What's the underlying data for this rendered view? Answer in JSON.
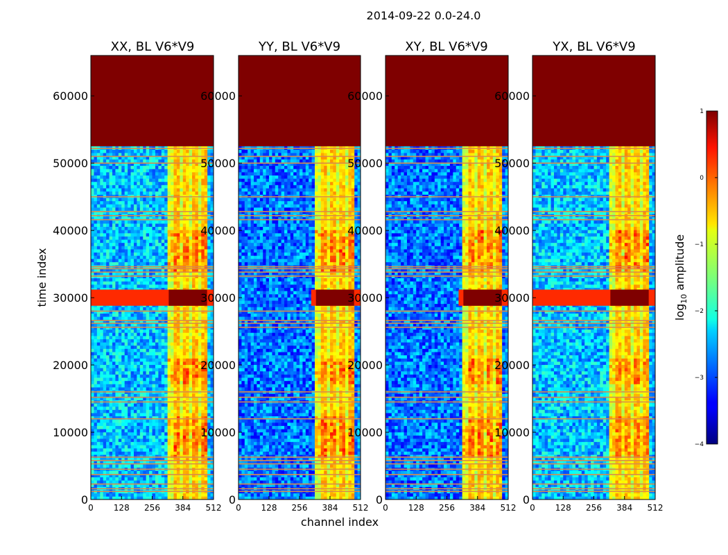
{
  "figure": {
    "suptitle": "2014-09-22 0.0-24.0"
  },
  "chart_data": [
    {
      "type": "heatmap",
      "title": "XX, BL V6*V9",
      "xlabel": "channel index",
      "ylabel": "time index",
      "xlim": [
        0,
        512
      ],
      "ylim": [
        0,
        66000
      ],
      "xticks": [
        0,
        128,
        256,
        384,
        512
      ],
      "yticks": [
        0,
        10000,
        20000,
        30000,
        40000,
        50000,
        60000
      ],
      "flag_region": [
        52500,
        66000
      ],
      "rfi_band_channels": [
        325,
        485
      ],
      "bright_time_bands": [
        [
          28800,
          31200
        ]
      ],
      "profile": "xx"
    },
    {
      "type": "heatmap",
      "title": "YY, BL V6*V9",
      "xlabel": "channel index",
      "ylabel": "",
      "xlim": [
        0,
        512
      ],
      "ylim": [
        0,
        66000
      ],
      "xticks": [
        0,
        128,
        256,
        384,
        512
      ],
      "yticks": [
        0,
        10000,
        20000,
        30000,
        40000,
        50000,
        60000
      ],
      "flag_region": [
        52500,
        66000
      ],
      "rfi_band_channels": [
        325,
        485
      ],
      "bright_time_bands": [
        [
          28800,
          31200
        ]
      ],
      "profile": "yy"
    },
    {
      "type": "heatmap",
      "title": "XY, BL V6*V9",
      "xlabel": "",
      "ylabel": "",
      "xlim": [
        0,
        512
      ],
      "ylim": [
        0,
        66000
      ],
      "xticks": [
        0,
        128,
        256,
        384,
        512
      ],
      "yticks": [
        0,
        10000,
        20000,
        30000,
        40000,
        50000,
        60000
      ],
      "flag_region": [
        52500,
        66000
      ],
      "rfi_band_channels": [
        325,
        485
      ],
      "bright_time_bands": [
        [
          28800,
          31200
        ]
      ],
      "profile": "xy"
    },
    {
      "type": "heatmap",
      "title": "YX, BL V6*V9",
      "xlabel": "",
      "ylabel": "",
      "xlim": [
        0,
        512
      ],
      "ylim": [
        0,
        66000
      ],
      "xticks": [
        0,
        128,
        256,
        384,
        512
      ],
      "yticks": [
        0,
        10000,
        20000,
        30000,
        40000,
        50000,
        60000
      ],
      "flag_region": [
        52500,
        66000
      ],
      "rfi_band_channels": [
        325,
        485
      ],
      "bright_time_bands": [
        [
          28800,
          31200
        ]
      ],
      "profile": "yx"
    }
  ],
  "colorbar": {
    "label": "log10 amplitude",
    "label_main": "log",
    "label_sub": "10",
    "label_rest": " amplitude",
    "min": -4,
    "max": 1,
    "ticks": [
      1,
      0,
      -1,
      -2,
      -3,
      -4
    ],
    "tick_labels": [
      "1",
      "0",
      "−1",
      "−2",
      "−3",
      "−4"
    ],
    "colormap": "jet"
  },
  "flag_times": [
    1200,
    1600,
    2300,
    3700,
    4500,
    5300,
    5800,
    6300,
    12000,
    14500,
    15200,
    16000,
    25600,
    26200,
    26600,
    28000,
    33200,
    33800,
    34300,
    34600,
    41600,
    42200,
    42800,
    45000,
    50000,
    51000,
    52200
  ],
  "flag_color": "#d98b4a",
  "band_colors": {
    "hot": "#7f0000",
    "low": "#00007f"
  }
}
